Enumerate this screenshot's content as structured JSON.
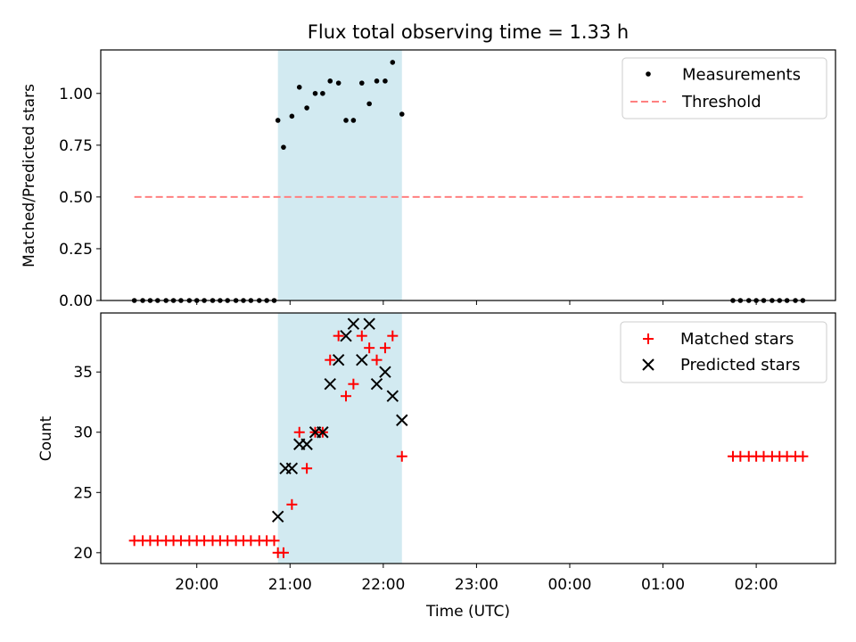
{
  "chart_data": [
    {
      "type": "scatter",
      "title": "Flux total observing time = 1.33 h",
      "xlabel": "",
      "ylabel": "Matched/Predicted stars",
      "ylim": [
        0,
        1.21
      ],
      "yticks": [
        0.0,
        0.25,
        0.5,
        0.75,
        1.0
      ],
      "ytick_labels": [
        "0.00",
        "0.25",
        "0.50",
        "0.75",
        "1.00"
      ],
      "highlight_span": {
        "x0": 20.87,
        "x1": 22.2,
        "color": "#add8e6"
      },
      "legend": {
        "placement": "top-right",
        "entries": [
          "Measurements",
          "Threshold"
        ]
      },
      "series": [
        {
          "name": "Measurements",
          "marker": "dot",
          "color": "#000000",
          "x": [
            19.33,
            19.42,
            19.5,
            19.58,
            19.67,
            19.75,
            19.83,
            19.92,
            20.0,
            20.08,
            20.17,
            20.25,
            20.33,
            20.42,
            20.5,
            20.58,
            20.67,
            20.75,
            20.83,
            20.87,
            20.93,
            21.02,
            21.1,
            21.18,
            21.27,
            21.35,
            21.43,
            21.52,
            21.6,
            21.68,
            21.77,
            21.85,
            21.93,
            22.02,
            22.1,
            22.2,
            25.75,
            25.83,
            25.92,
            26.0,
            26.08,
            26.17,
            26.25,
            26.33,
            26.42,
            26.5
          ],
          "y": [
            0,
            0,
            0,
            0,
            0,
            0,
            0,
            0,
            0,
            0,
            0,
            0,
            0,
            0,
            0,
            0,
            0,
            0,
            0,
            0.87,
            0.74,
            0.89,
            1.03,
            0.93,
            1.0,
            1.0,
            1.06,
            1.05,
            0.87,
            0.87,
            1.05,
            0.95,
            1.06,
            1.06,
            1.15,
            0.9,
            0,
            0,
            0,
            0,
            0,
            0,
            0,
            0,
            0,
            0
          ]
        },
        {
          "name": "Threshold",
          "marker": "dashed-line",
          "color": "#ff8080",
          "x": [
            19.33,
            26.5
          ],
          "y": [
            0.5,
            0.5
          ]
        }
      ]
    },
    {
      "type": "scatter",
      "title": "",
      "xlabel": "Time (UTC)",
      "ylabel": "Count",
      "ylim": [
        19.1,
        39.9
      ],
      "yticks": [
        20,
        25,
        30,
        35
      ],
      "ytick_labels": [
        "20",
        "25",
        "30",
        "35"
      ],
      "xlim": [
        18.97,
        26.85
      ],
      "xticks": [
        20,
        21,
        22,
        23,
        24,
        25,
        26
      ],
      "xtick_labels": [
        "20:00",
        "21:00",
        "22:00",
        "23:00",
        "00:00",
        "01:00",
        "02:00"
      ],
      "highlight_span": {
        "x0": 20.87,
        "x1": 22.2,
        "color": "#add8e6"
      },
      "legend": {
        "placement": "top-right",
        "entries": [
          "Matched stars",
          "Predicted stars"
        ]
      },
      "series": [
        {
          "name": "Matched stars",
          "marker": "plus",
          "color": "#ff0000",
          "x": [
            19.33,
            19.42,
            19.5,
            19.58,
            19.67,
            19.75,
            19.83,
            19.92,
            20.0,
            20.08,
            20.17,
            20.25,
            20.33,
            20.42,
            20.5,
            20.58,
            20.67,
            20.75,
            20.83,
            20.87,
            20.93,
            21.02,
            21.1,
            21.18,
            21.27,
            21.35,
            21.43,
            21.52,
            21.6,
            21.68,
            21.77,
            21.85,
            21.93,
            22.02,
            22.1,
            22.2,
            25.75,
            25.83,
            25.92,
            26.0,
            26.08,
            26.17,
            26.25,
            26.33,
            26.42,
            26.5
          ],
          "y": [
            21,
            21,
            21,
            21,
            21,
            21,
            21,
            21,
            21,
            21,
            21,
            21,
            21,
            21,
            21,
            21,
            21,
            21,
            21,
            20,
            20,
            24,
            30,
            27,
            30,
            30,
            36,
            38,
            33,
            34,
            38,
            37,
            36,
            37,
            38,
            28,
            28,
            28,
            28,
            28,
            28,
            28,
            28,
            28,
            28,
            28
          ]
        },
        {
          "name": "Predicted stars",
          "marker": "x",
          "color": "#000000",
          "x": [
            20.87,
            20.95,
            21.02,
            21.1,
            21.18,
            21.27,
            21.35,
            21.43,
            21.52,
            21.6,
            21.68,
            21.77,
            21.85,
            21.93,
            22.02,
            22.1,
            22.2
          ],
          "y": [
            23,
            27,
            27,
            29,
            29,
            30,
            30,
            34,
            36,
            38,
            39,
            36,
            39,
            34,
            35,
            33,
            31
          ]
        }
      ]
    }
  ]
}
